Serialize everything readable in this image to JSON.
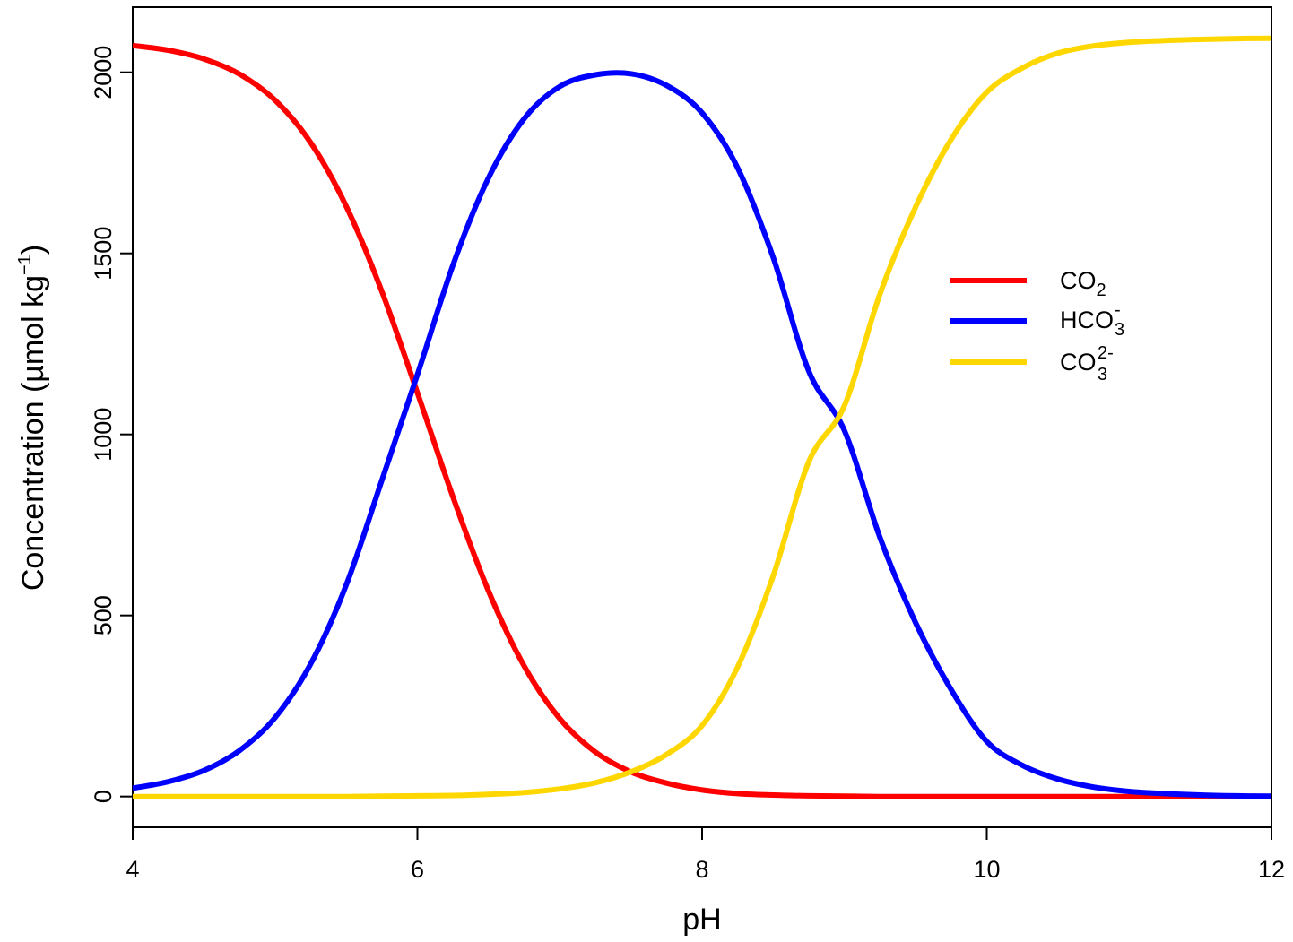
{
  "chart_data": {
    "type": "line",
    "title": "",
    "xlabel": "pH",
    "ylabel": {
      "main": "Concentration (µmol kg",
      "sup": "−1",
      "close": ")"
    },
    "xlim": [
      4,
      12
    ],
    "ylim": [
      -85,
      2180
    ],
    "xticks": [
      4,
      6,
      8,
      10,
      12
    ],
    "yticks": [
      0,
      500,
      1000,
      1500,
      2000
    ],
    "grid": false,
    "legend_position": "right",
    "x": [
      4.0,
      4.25,
      4.5,
      4.75,
      5.0,
      5.25,
      5.5,
      5.75,
      6.0,
      6.25,
      6.5,
      6.75,
      7.0,
      7.25,
      7.5,
      7.75,
      8.0,
      8.25,
      8.5,
      8.75,
      9.0,
      9.25,
      9.5,
      9.75,
      10.0,
      10.25,
      10.5,
      10.75,
      11.0,
      11.25,
      11.5,
      11.75,
      12.0
    ],
    "series": [
      {
        "name": "CO2",
        "legend": {
          "main": "CO",
          "sub": "2",
          "sup": ""
        },
        "color": "#ff0000",
        "values": [
          2074,
          2061,
          2037,
          1995,
          1923,
          1806,
          1630,
          1395,
          1115,
          827,
          567,
          360,
          215,
          123,
          68,
          37,
          18,
          8,
          4,
          2,
          1,
          0,
          0,
          0,
          0,
          0,
          0,
          0,
          0,
          0,
          0,
          0,
          0
        ]
      },
      {
        "name": "HCO3-",
        "legend": {
          "main": "HCO",
          "sub": "3",
          "sup": "-"
        },
        "color": "#0000ff",
        "values": [
          23,
          41,
          72,
          127,
          218,
          366,
          584,
          873,
          1165,
          1468,
          1709,
          1872,
          1961,
          1993,
          1996,
          1964,
          1888,
          1736,
          1488,
          1174,
          1010,
          715,
          480,
          295,
          152,
          86,
          48,
          26,
          14,
          8,
          4,
          2,
          1
        ]
      },
      {
        "name": "CO3 2-",
        "legend": {
          "main": "CO",
          "sub": "3",
          "sup": "2-"
        },
        "color": "#ffd700",
        "values": [
          0,
          0,
          0,
          0,
          0,
          0,
          0,
          1,
          2,
          3,
          6,
          11,
          21,
          38,
          68,
          116,
          196,
          358,
          610,
          925,
          1080,
          1388,
          1628,
          1815,
          1945,
          2012,
          2053,
          2073,
          2083,
          2088,
          2091,
          2093,
          2094
        ]
      }
    ]
  }
}
